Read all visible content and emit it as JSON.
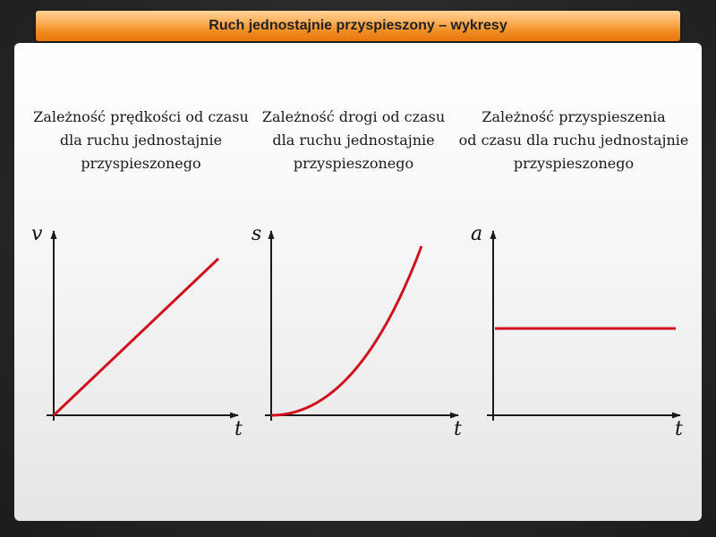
{
  "header": {
    "title": "Ruch jednostajnie przyspieszony – wykresy"
  },
  "graphs": [
    {
      "caption": "Zależność prędkości od czasu\ndla ruchu jednostajnie\nprzyspieszonego",
      "y_label": "v",
      "x_label": "t",
      "curve": "linear",
      "line_color": "#d0121e"
    },
    {
      "caption": "Zależność drogi od czasu\ndla ruchu jednostajnie\nprzyspieszonego",
      "y_label": "s",
      "x_label": "t",
      "curve": "parabola",
      "line_color": "#d0121e"
    },
    {
      "caption": "Zależność przyspieszenia\nod czasu dla ruchu jednostajnie\nprzyspieszonego",
      "y_label": "a",
      "x_label": "t",
      "curve": "constant",
      "line_color": "#d0121e"
    }
  ]
}
